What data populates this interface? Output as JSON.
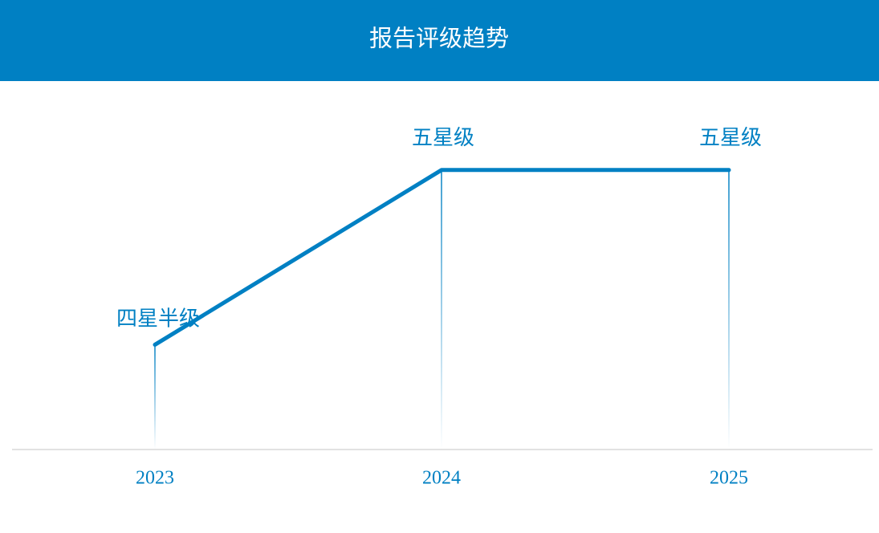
{
  "chart_data": {
    "type": "line",
    "title": "报告评级趋势",
    "categories": [
      "2023",
      "2024",
      "2025"
    ],
    "values": [
      4.5,
      5,
      5
    ],
    "value_labels": [
      "四星半级",
      "五星级",
      "五星级"
    ],
    "color": "#0080c3",
    "ylim": [
      4.2,
      5.25
    ]
  }
}
